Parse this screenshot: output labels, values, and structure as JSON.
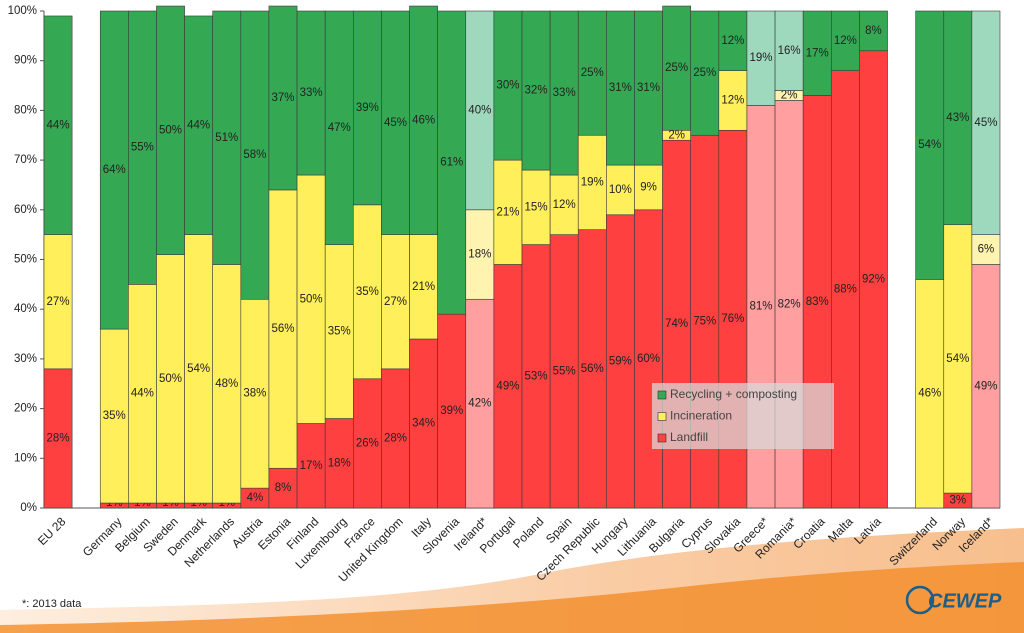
{
  "chart_data": {
    "type": "stacked_bar",
    "categories": [
      "EU 28",
      null,
      "Germany",
      "Belgium",
      "Sweden",
      "Denmark",
      "Netherlands",
      "Austria",
      "Estonia",
      "Finland",
      "Luxembourg",
      "France",
      "United Kingdom",
      "Italy",
      "Slovenia",
      "Ireland*",
      "Portugal",
      "Poland",
      "Spain",
      "Czech Republic",
      "Hungary",
      "Lithuania",
      "Bulgaria",
      "Cyprus",
      "Slovakia",
      "Greece*",
      "Romania*",
      "Croatia",
      "Malta",
      "Latvia",
      null,
      "Switzerland",
      "Norway",
      "Iceland*"
    ],
    "series": [
      {
        "name": "Landfill",
        "color": "#ff4040",
        "faded_color": "#ff9f9f",
        "values": [
          28,
          null,
          1,
          1,
          1,
          1,
          1,
          4,
          8,
          17,
          18,
          26,
          28,
          34,
          39,
          42,
          49,
          53,
          55,
          56,
          59,
          60,
          74,
          75,
          76,
          81,
          82,
          83,
          88,
          92,
          null,
          null,
          3,
          49
        ],
        "value_labels": [
          "28%",
          null,
          "1%",
          "1%",
          "1%",
          "1%",
          "1%",
          "4%",
          "8%",
          "17%",
          "18%",
          "26%",
          "28%",
          "34%",
          "39%",
          "42%",
          "49%",
          "53%",
          "55%",
          "56%",
          "59%",
          "60%",
          "74%",
          "75%",
          "76%",
          "81%",
          "82%",
          "83%",
          "88%",
          "92%",
          null,
          null,
          "3%",
          "49%"
        ]
      },
      {
        "name": "Incineration",
        "color": "#ffef5a",
        "faded_color": "#fff3b0",
        "values": [
          27,
          null,
          35,
          44,
          50,
          54,
          48,
          38,
          56,
          50,
          35,
          35,
          27,
          21,
          null,
          18,
          21,
          15,
          12,
          19,
          10,
          9,
          2,
          null,
          12,
          null,
          2,
          null,
          null,
          null,
          null,
          46,
          54,
          6
        ],
        "value_labels": [
          "27%",
          null,
          "35%",
          "44%",
          "50%",
          "54%",
          "48%",
          "38%",
          "56%",
          "50%",
          "35%",
          "35%",
          "27%",
          "21%",
          null,
          "18%",
          "21%",
          "15%",
          "12%",
          "19%",
          "10%",
          "9%",
          "2%",
          null,
          "12%",
          null,
          "2%",
          null,
          null,
          null,
          null,
          "46%",
          "54%",
          "6%"
        ]
      },
      {
        "name": "Recycling + composting",
        "color": "#35a853",
        "faded_color": "#9fd9bd",
        "values": [
          44,
          null,
          64,
          55,
          50,
          44,
          51,
          58,
          37,
          33,
          47,
          39,
          45,
          46,
          61,
          40,
          30,
          32,
          33,
          25,
          31,
          31,
          25,
          25,
          12,
          19,
          16,
          17,
          12,
          8,
          null,
          54,
          43,
          45
        ],
        "value_labels": [
          "44%",
          null,
          "64%",
          "55%",
          "50%",
          "44%",
          "51%",
          "58%",
          "37%",
          "33%",
          "47%",
          "39%",
          "45%",
          "46%",
          "61%",
          "40%",
          "30%",
          "32%",
          "33%",
          "25%",
          "31%",
          "31%",
          "25%",
          "25%",
          "12%",
          "19%",
          "16%",
          "17%",
          "12%",
          "8%",
          null,
          "54%",
          "43%",
          "45%"
        ]
      }
    ],
    "ylim": [
      0,
      100
    ],
    "yticks": [
      {
        "value": 0,
        "label": "0%"
      },
      {
        "value": 10,
        "label": "10%"
      },
      {
        "value": 20,
        "label": "20%"
      },
      {
        "value": 30,
        "label": "30%"
      },
      {
        "value": 40,
        "label": "40%"
      },
      {
        "value": 50,
        "label": "50%"
      },
      {
        "value": 60,
        "label": "60%"
      },
      {
        "value": 70,
        "label": "70%"
      },
      {
        "value": 80,
        "label": "80%"
      },
      {
        "value": 90,
        "label": "90%"
      },
      {
        "value": 100,
        "label": "100%"
      }
    ],
    "legend_position": "lower center",
    "footnote": {
      "marker": "*",
      "text": ": 2013 data"
    },
    "logo": "CEWEP"
  }
}
